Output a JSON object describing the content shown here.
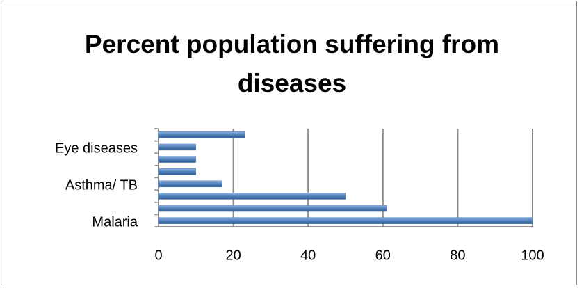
{
  "chart_data": {
    "type": "hbar",
    "title": "Percent population suffering from diseases",
    "categories": [
      "Malaria",
      null,
      null,
      "Asthma/ TB",
      null,
      null,
      "Eye diseases",
      null
    ],
    "values": [
      100,
      61,
      50,
      17,
      10,
      10,
      10,
      23
    ],
    "color": "#4f81bd",
    "xlim": [
      0,
      100
    ],
    "xticks": [
      0,
      20,
      40,
      60,
      80,
      100
    ],
    "grid": true
  }
}
